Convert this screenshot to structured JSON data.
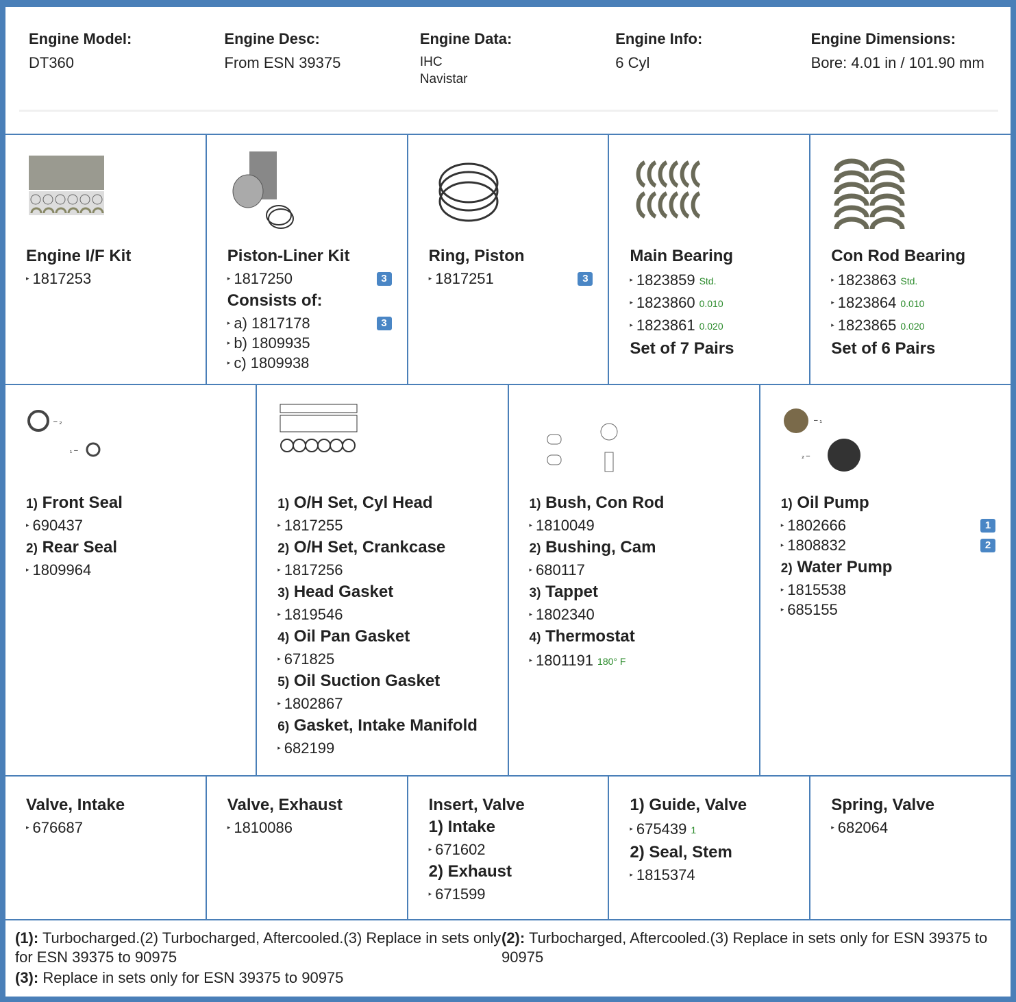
{
  "header": [
    {
      "label": "Engine Model:",
      "value": [
        "DT360"
      ]
    },
    {
      "label": "Engine Desc:",
      "value": [
        "From ESN 39375"
      ]
    },
    {
      "label": "Engine Data:",
      "value": [
        "IHC",
        "Navistar"
      ],
      "small": true
    },
    {
      "label": "Engine Info:",
      "value": [
        "6 Cyl"
      ]
    },
    {
      "label": "Engine Dimensions:",
      "value": [
        "Bore: 4.01 in / 101.90 mm"
      ]
    }
  ],
  "rows": [
    [
      {
        "groups": [
          {
            "title": "Engine I/F Kit",
            "parts": [
              {
                "number": "1817253"
              }
            ]
          }
        ]
      },
      {
        "groups": [
          {
            "title": "Piston-Liner Kit",
            "parts": [
              {
                "number": "1817250",
                "badge": "3"
              }
            ]
          },
          {
            "title": "Consists of:",
            "parts": [
              {
                "number": "a) 1817178",
                "badge": "3"
              },
              {
                "number": "b) 1809935"
              },
              {
                "number": "c) 1809938"
              }
            ]
          }
        ]
      },
      {
        "groups": [
          {
            "title": "Ring, Piston",
            "parts": [
              {
                "number": "1817251",
                "badge": "3"
              }
            ]
          }
        ]
      },
      {
        "groups": [
          {
            "title": "Main Bearing",
            "parts": [
              {
                "number": "1823859",
                "note": "Std."
              },
              {
                "number": "1823860",
                "note": "0.010"
              },
              {
                "number": "1823861",
                "note": "0.020"
              }
            ]
          },
          {
            "title": "Set of 7 Pairs"
          }
        ]
      },
      {
        "groups": [
          {
            "title": "Con Rod Bearing",
            "parts": [
              {
                "number": "1823863",
                "note": "Std."
              },
              {
                "number": "1823864",
                "note": "0.010"
              },
              {
                "number": "1823865",
                "note": "0.020"
              }
            ]
          },
          {
            "title": "Set of 6 Pairs"
          }
        ]
      }
    ],
    [
      {
        "groups": [
          {
            "index": "1)",
            "title": "Front Seal",
            "parts": [
              {
                "number": "690437"
              }
            ]
          },
          {
            "index": "2)",
            "title": "Rear Seal",
            "parts": [
              {
                "number": "1809964"
              }
            ]
          }
        ]
      },
      {
        "groups": [
          {
            "index": "1)",
            "title": "O/H Set, Cyl Head",
            "parts": [
              {
                "number": "1817255"
              }
            ]
          },
          {
            "index": "2)",
            "title": "O/H Set, Crankcase",
            "parts": [
              {
                "number": "1817256"
              }
            ]
          },
          {
            "index": "3)",
            "title": "Head Gasket",
            "parts": [
              {
                "number": "1819546"
              }
            ]
          },
          {
            "index": "4)",
            "title": "Oil Pan Gasket",
            "parts": [
              {
                "number": "671825"
              }
            ]
          },
          {
            "index": "5)",
            "title": "Oil Suction Gasket",
            "parts": [
              {
                "number": "1802867"
              }
            ]
          },
          {
            "index": "6)",
            "title": "Gasket, Intake Manifold",
            "parts": [
              {
                "number": "682199"
              }
            ]
          }
        ]
      },
      {
        "groups": [
          {
            "index": "1)",
            "title": "Bush, Con Rod",
            "parts": [
              {
                "number": "1810049"
              }
            ]
          },
          {
            "index": "2)",
            "title": "Bushing, Cam",
            "parts": [
              {
                "number": "680117"
              }
            ]
          },
          {
            "index": "3)",
            "title": "Tappet",
            "parts": [
              {
                "number": "1802340"
              }
            ]
          },
          {
            "index": "4)",
            "title": "Thermostat",
            "parts": [
              {
                "number": "1801191",
                "note": "180° F"
              }
            ]
          }
        ]
      },
      {
        "groups": [
          {
            "index": "1)",
            "title": "Oil Pump",
            "parts": [
              {
                "number": "1802666",
                "badge": "1"
              },
              {
                "number": "1808832",
                "badge": "2"
              }
            ]
          },
          {
            "index": "2)",
            "title": "Water Pump",
            "parts": [
              {
                "number": "1815538"
              },
              {
                "number": "685155"
              }
            ]
          }
        ]
      }
    ],
    [
      {
        "groups": [
          {
            "title": "Valve, Intake",
            "parts": [
              {
                "number": "676687"
              }
            ]
          }
        ]
      },
      {
        "groups": [
          {
            "title": "Valve, Exhaust",
            "parts": [
              {
                "number": "1810086"
              }
            ]
          }
        ]
      },
      {
        "groups": [
          {
            "title": "Insert, Valve"
          },
          {
            "title": "1) Intake",
            "parts": [
              {
                "number": "671602"
              }
            ]
          },
          {
            "title": "2) Exhaust",
            "parts": [
              {
                "number": "671599"
              }
            ]
          }
        ]
      },
      {
        "groups": [
          {
            "title": "1) Guide, Valve",
            "parts": [
              {
                "number": "675439",
                "note": "1"
              }
            ]
          },
          {
            "title": "2) Seal, Stem",
            "parts": [
              {
                "number": "1815374"
              }
            ]
          }
        ]
      },
      {
        "groups": [
          {
            "title": "Spring, Valve",
            "parts": [
              {
                "number": "682064"
              }
            ]
          }
        ]
      }
    ]
  ],
  "footnotes": [
    {
      "label": "(1):",
      "text": "Turbocharged.(2) Turbocharged, Aftercooled.(3) Replace in sets only for ESN 39375 to 90975"
    },
    {
      "label": "(2):",
      "text": "Turbocharged, Aftercooled.(3) Replace in sets only for ESN 39375 to 90975"
    },
    {
      "label": "(3):",
      "text": "Replace in sets only for ESN 39375 to 90975"
    }
  ]
}
